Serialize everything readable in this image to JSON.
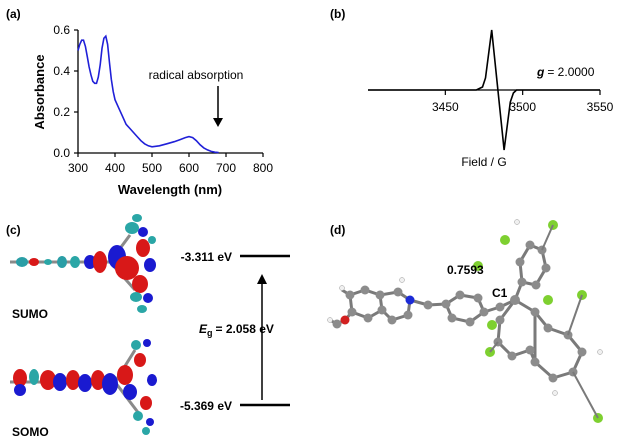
{
  "panels": {
    "a": "(a)",
    "b": "(b)",
    "c": "(c)",
    "d": "(d)"
  },
  "chart_data": [
    {
      "type": "line",
      "panel": "a",
      "xlabel": "Wavelength (nm)",
      "ylabel": "Absorbance",
      "xlim": [
        300,
        800
      ],
      "ylim": [
        0.0,
        0.6
      ],
      "xticks": [
        "300",
        "400",
        "500",
        "600",
        "700",
        "800"
      ],
      "yticks": [
        "0.0",
        "0.2",
        "0.4",
        "0.6"
      ],
      "annotation": "radical absorption",
      "series": [
        {
          "color": "#2020d8",
          "x": [
            300,
            305,
            310,
            315,
            320,
            325,
            330,
            335,
            340,
            345,
            350,
            355,
            360,
            365,
            370,
            375,
            380,
            385,
            390,
            395,
            400,
            410,
            420,
            430,
            440,
            450,
            460,
            470,
            480,
            490,
            500,
            520,
            540,
            560,
            575,
            590,
            600,
            610,
            620,
            630,
            640,
            650,
            660,
            670,
            680
          ],
          "y": [
            0.5,
            0.53,
            0.55,
            0.55,
            0.52,
            0.47,
            0.42,
            0.38,
            0.35,
            0.34,
            0.34,
            0.37,
            0.43,
            0.51,
            0.56,
            0.57,
            0.53,
            0.44,
            0.36,
            0.3,
            0.26,
            0.22,
            0.18,
            0.14,
            0.12,
            0.1,
            0.08,
            0.06,
            0.045,
            0.035,
            0.03,
            0.035,
            0.045,
            0.055,
            0.065,
            0.075,
            0.08,
            0.075,
            0.06,
            0.04,
            0.025,
            0.015,
            0.008,
            0.004,
            0.002
          ]
        }
      ]
    },
    {
      "type": "line",
      "panel": "b",
      "xlabel": "Field / G",
      "xlim": [
        3400,
        3550
      ],
      "xticks": [
        "3450",
        "3500",
        "3550"
      ],
      "annotation_g": "g",
      "annotation_value": "= 2.0000",
      "series": [
        {
          "color": "#000000",
          "x": [
            3400,
            3470,
            3474,
            3476,
            3478,
            3480,
            3482,
            3484,
            3486,
            3488,
            3490,
            3492,
            3494,
            3496,
            3500,
            3550
          ],
          "y": [
            0,
            0,
            0.05,
            0.2,
            0.6,
            1.0,
            0.5,
            0.0,
            -0.5,
            -1.0,
            -0.6,
            -0.2,
            -0.05,
            0,
            0,
            0
          ]
        }
      ]
    }
  ],
  "energy": {
    "sumo_label": "SUMO",
    "somo_label": "SOMO",
    "sumo_energy": "-3.311 eV",
    "somo_energy": "-5.369 eV",
    "gap_symbol": "E",
    "gap_subscript": "g",
    "gap_value": "= 2.058 eV"
  },
  "structure": {
    "distance": "0.7593",
    "atom": "C1"
  }
}
